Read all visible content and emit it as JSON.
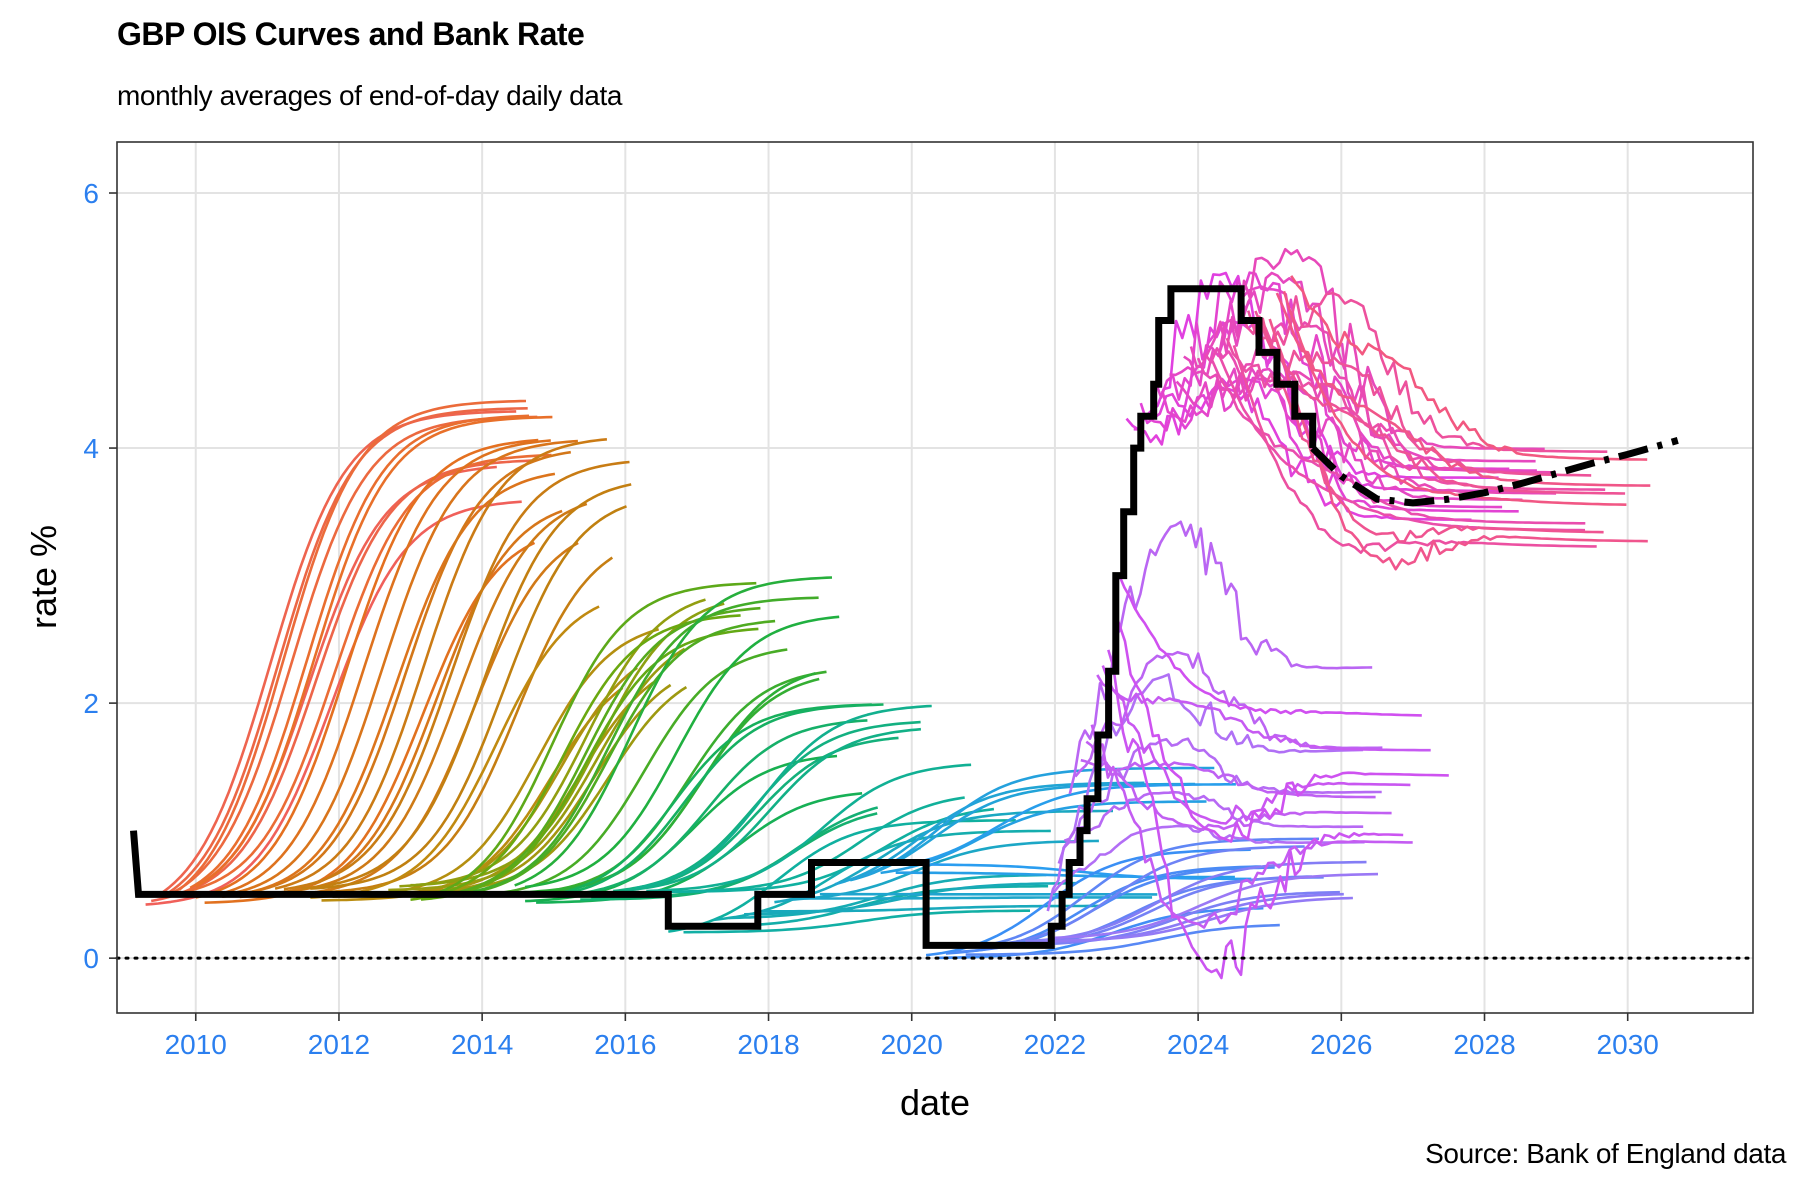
{
  "header": {
    "title": "GBP OIS Curves and Bank Rate",
    "subtitle": "monthly averages of end-of-day daily data"
  },
  "footer": {
    "caption": "Source: Bank of England data"
  },
  "chart_data": {
    "type": "line",
    "title": "GBP OIS Curves and Bank Rate",
    "subtitle": "monthly averages of end-of-day daily data",
    "xlabel": "date",
    "ylabel": "rate %",
    "caption": "Source: Bank of England data",
    "xlim": [
      2008.9,
      2031.75
    ],
    "ylim": [
      -0.43,
      6.4
    ],
    "x_ticks": [
      2010,
      2012,
      2014,
      2016,
      2018,
      2020,
      2022,
      2024,
      2026,
      2028,
      2030
    ],
    "y_ticks": [
      0,
      2,
      4,
      6
    ],
    "grid": true,
    "legend": "none",
    "colors": {
      "tick_labels": "#2b7fef",
      "bank_rate": "#000000",
      "grid": "#e3e3e3",
      "curve_palette": [
        "#f0605a",
        "#e07020",
        "#b88e10",
        "#8ca010",
        "#28b010",
        "#10b070",
        "#10b0c0",
        "#2a9df0",
        "#5b8ef5",
        "#9a78f5",
        "#c95ef2",
        "#f048d2",
        "#f54a98",
        "#f05e6a"
      ]
    },
    "reference_line": {
      "y": 0,
      "style": "dotted"
    },
    "bank_rate": {
      "name": "Bank Rate",
      "style": "thick step",
      "points": [
        [
          2009.13,
          1.0
        ],
        [
          2009.2,
          0.5
        ],
        [
          2016.6,
          0.5
        ],
        [
          2016.6,
          0.25
        ],
        [
          2017.85,
          0.25
        ],
        [
          2017.85,
          0.5
        ],
        [
          2018.6,
          0.5
        ],
        [
          2018.6,
          0.75
        ],
        [
          2020.2,
          0.75
        ],
        [
          2020.2,
          0.1
        ],
        [
          2021.95,
          0.1
        ],
        [
          2021.95,
          0.25
        ],
        [
          2022.1,
          0.25
        ],
        [
          2022.1,
          0.5
        ],
        [
          2022.2,
          0.5
        ],
        [
          2022.2,
          0.75
        ],
        [
          2022.35,
          0.75
        ],
        [
          2022.35,
          1.0
        ],
        [
          2022.45,
          1.0
        ],
        [
          2022.45,
          1.25
        ],
        [
          2022.6,
          1.25
        ],
        [
          2022.6,
          1.75
        ],
        [
          2022.75,
          1.75
        ],
        [
          2022.75,
          2.25
        ],
        [
          2022.85,
          2.25
        ],
        [
          2022.85,
          3.0
        ],
        [
          2022.96,
          3.0
        ],
        [
          2022.96,
          3.5
        ],
        [
          2023.1,
          3.5
        ],
        [
          2023.1,
          4.0
        ],
        [
          2023.2,
          4.0
        ],
        [
          2023.2,
          4.25
        ],
        [
          2023.38,
          4.25
        ],
        [
          2023.38,
          4.5
        ],
        [
          2023.45,
          4.5
        ],
        [
          2023.45,
          5.0
        ],
        [
          2023.62,
          5.0
        ],
        [
          2023.62,
          5.25
        ],
        [
          2024.6,
          5.25
        ],
        [
          2024.6,
          5.0
        ],
        [
          2024.85,
          5.0
        ],
        [
          2024.85,
          4.75
        ],
        [
          2025.1,
          4.75
        ],
        [
          2025.1,
          4.5
        ],
        [
          2025.35,
          4.5
        ],
        [
          2025.35,
          4.25
        ],
        [
          2025.6,
          4.25
        ],
        [
          2025.6,
          4.0
        ]
      ]
    },
    "forward_curve": {
      "style": "dash-dot",
      "points": [
        [
          2025.6,
          4.0
        ],
        [
          2026.0,
          3.78
        ],
        [
          2026.5,
          3.6
        ],
        [
          2027.0,
          3.57
        ],
        [
          2027.5,
          3.6
        ],
        [
          2028.0,
          3.65
        ],
        [
          2028.5,
          3.72
        ],
        [
          2029.0,
          3.8
        ],
        [
          2029.5,
          3.88
        ],
        [
          2030.0,
          3.95
        ],
        [
          2030.7,
          4.06
        ]
      ]
    },
    "ois_curves": {
      "note": "families of monthly OIS forward curves, one curve per month; values read approximately from gridlines",
      "families": [
        {
          "start": [
            2009.3,
            2010.0
          ],
          "start_rate": [
            0.45,
            0.55
          ],
          "end_rate": [
            3.6,
            4.55
          ],
          "horizon": 5,
          "rise_center": [
            1.2,
            2.6
          ],
          "color_from": "#f0605a",
          "color_to": "#e8702a",
          "count": 10
        },
        {
          "start": [
            2010.0,
            2011.6
          ],
          "start_rate": [
            0.45,
            0.55
          ],
          "end_rate": [
            3.3,
            4.15
          ],
          "horizon": 4.6,
          "rise_center": [
            2.0,
            3.2
          ],
          "color_from": "#e47020",
          "color_to": "#c08010",
          "count": 14
        },
        {
          "start": [
            2011.6,
            2013.0
          ],
          "start_rate": [
            0.45,
            0.55
          ],
          "end_rate": [
            2.0,
            3.0
          ],
          "horizon": 4.3,
          "rise_center": [
            2.5,
            3.6
          ],
          "color_from": "#c08a10",
          "color_to": "#8ca010",
          "count": 10
        },
        {
          "start": [
            2013.0,
            2014.6
          ],
          "start_rate": [
            0.45,
            0.55
          ],
          "end_rate": [
            2.2,
            3.0
          ],
          "horizon": 4.6,
          "rise_center": [
            1.6,
            3.0
          ],
          "color_from": "#6aa810",
          "color_to": "#20b040",
          "count": 12
        },
        {
          "start": [
            2014.6,
            2016.6
          ],
          "start_rate": [
            0.45,
            0.55
          ],
          "end_rate": [
            1.2,
            2.1
          ],
          "horizon": 4.3,
          "rise_center": [
            1.6,
            3.0
          ],
          "color_from": "#18b050",
          "color_to": "#10b0a0",
          "count": 14
        },
        {
          "start": [
            2016.6,
            2020.2
          ],
          "start_rate": [
            0.2,
            0.75
          ],
          "end_rate": [
            0.35,
            1.5
          ],
          "horizon": 4.6,
          "rise_center": [
            1.0,
            2.5
          ],
          "color_from": "#10b0a0",
          "color_to": "#2a9df0",
          "count": 18
        },
        {
          "start": [
            2020.2,
            2022.0
          ],
          "start_rate": [
            0.0,
            0.15
          ],
          "end_rate": [
            0.1,
            0.95
          ],
          "horizon": 4.5,
          "rise_center": [
            1.5,
            3.0
          ],
          "color_from": "#3a8ff5",
          "color_to": "#9a78f5",
          "count": 14
        },
        {
          "start": [
            2021.9,
            2022.9
          ],
          "start_rate": [
            0.3,
            3.0
          ],
          "end_rate": [
            0.8,
            2.3
          ],
          "horizon": 4.4,
          "peak_rate": [
            0.9,
            3.65
          ],
          "color_from": "#b070f5",
          "color_to": "#d050f0",
          "count": 14
        },
        {
          "start": [
            2023.0,
            2025.3
          ],
          "start_rate": [
            4.0,
            5.3
          ],
          "end_rate": [
            3.15,
            4.05
          ],
          "horizon": 5,
          "peak_rate": [
            4.4,
            6.1
          ],
          "color_from": "#e040e0",
          "color_to": "#f25880",
          "count": 24
        }
      ]
    }
  }
}
